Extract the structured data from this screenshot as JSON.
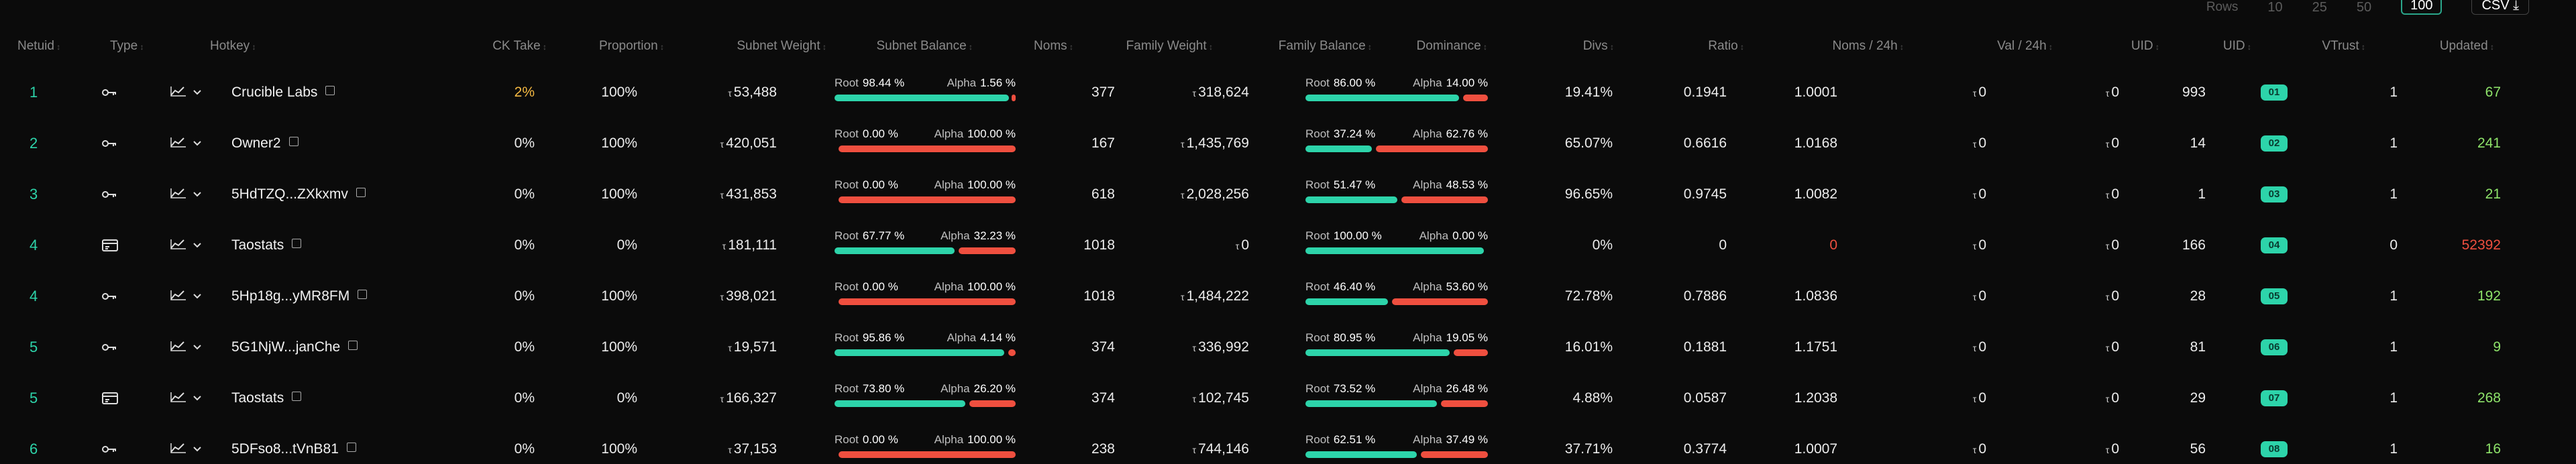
{
  "controls": {
    "rows_label": "Rows",
    "row_options": [
      "10",
      "25",
      "50",
      "100"
    ],
    "selected_rows": "100",
    "csv_label": "CSV"
  },
  "columns": [
    "Netuid",
    "Type",
    "Hotkey",
    "CK Take",
    "Proportion",
    "Subnet Weight",
    "Subnet Balance",
    "Noms",
    "Family Weight",
    "Family Balance",
    "Dominance",
    "Divs",
    "Ratio",
    "Noms / 24h",
    "Val / 24h",
    "UID",
    "UID",
    "VTrust",
    "Updated"
  ],
  "tao_symbol": "τ",
  "balance_labels": {
    "root": "Root",
    "alpha": "Alpha"
  },
  "rows": [
    {
      "netuid": "1",
      "type": "key",
      "hotkey": "Crucible Labs",
      "ck_take": "2%",
      "ck_take_highlight": true,
      "proportion": "100%",
      "subnet_weight": "53,488",
      "subnet_root": "98.44 %",
      "subnet_alpha": "1.56 %",
      "subnet_root_pct": 98.44,
      "noms": "377",
      "family_weight": "318,624",
      "family_root": "86.00 %",
      "family_alpha": "14.00 %",
      "family_root_pct": 86.0,
      "divs": "19.41%",
      "ratio": "0.1941",
      "noms_24h": "1.0001",
      "noms_24h_neg": false,
      "val_24h": "0",
      "uid1": "0",
      "uid2": "993",
      "uid_badge": "01",
      "vtrust": "1",
      "updated": "67",
      "updated_neg": false
    },
    {
      "netuid": "2",
      "type": "key",
      "hotkey": "Owner2",
      "ck_take": "0%",
      "ck_take_highlight": false,
      "proportion": "100%",
      "subnet_weight": "420,051",
      "subnet_root": "0.00 %",
      "subnet_alpha": "100.00 %",
      "subnet_root_pct": 0.0,
      "noms": "167",
      "family_weight": "1,435,769",
      "family_root": "37.24 %",
      "family_alpha": "62.76 %",
      "family_root_pct": 37.24,
      "divs": "65.07%",
      "ratio": "0.6616",
      "noms_24h": "1.0168",
      "noms_24h_neg": false,
      "val_24h": "0",
      "uid1": "0",
      "uid2": "14",
      "uid_badge": "02",
      "vtrust": "1",
      "updated": "241",
      "updated_neg": false
    },
    {
      "netuid": "3",
      "type": "key",
      "hotkey": "5HdTZQ...ZXkxmv",
      "ck_take": "0%",
      "ck_take_highlight": false,
      "proportion": "100%",
      "subnet_weight": "431,853",
      "subnet_root": "0.00 %",
      "subnet_alpha": "100.00 %",
      "subnet_root_pct": 0.0,
      "noms": "618",
      "family_weight": "2,028,256",
      "family_root": "51.47 %",
      "family_alpha": "48.53 %",
      "family_root_pct": 51.47,
      "divs": "96.65%",
      "ratio": "0.9745",
      "noms_24h": "1.0082",
      "noms_24h_neg": false,
      "val_24h": "0",
      "uid1": "0",
      "uid2": "1",
      "uid_badge": "03",
      "vtrust": "1",
      "updated": "21",
      "updated_neg": false
    },
    {
      "netuid": "4",
      "type": "card",
      "hotkey": "Taostats",
      "ck_take": "0%",
      "ck_take_highlight": false,
      "proportion": "0%",
      "subnet_weight": "181,111",
      "subnet_root": "67.77 %",
      "subnet_alpha": "32.23 %",
      "subnet_root_pct": 67.77,
      "noms": "1018",
      "family_weight": "0",
      "family_root": "100.00 %",
      "family_alpha": "0.00 %",
      "family_root_pct": 100.0,
      "divs": "0%",
      "ratio": "0",
      "noms_24h": "0",
      "noms_24h_neg": true,
      "val_24h": "0",
      "uid1": "0",
      "uid2": "166",
      "uid_badge": "04",
      "vtrust": "0",
      "updated": "52392",
      "updated_neg": true
    },
    {
      "netuid": "4",
      "type": "key",
      "hotkey": "5Hp18g...yMR8FM",
      "ck_take": "0%",
      "ck_take_highlight": false,
      "proportion": "100%",
      "subnet_weight": "398,021",
      "subnet_root": "0.00 %",
      "subnet_alpha": "100.00 %",
      "subnet_root_pct": 0.0,
      "noms": "1018",
      "family_weight": "1,484,222",
      "family_root": "46.40 %",
      "family_alpha": "53.60 %",
      "family_root_pct": 46.4,
      "divs": "72.78%",
      "ratio": "0.7886",
      "noms_24h": "1.0836",
      "noms_24h_neg": false,
      "val_24h": "0",
      "uid1": "0",
      "uid2": "28",
      "uid_badge": "05",
      "vtrust": "1",
      "updated": "192",
      "updated_neg": false
    },
    {
      "netuid": "5",
      "type": "key",
      "hotkey": "5G1NjW...janChe",
      "ck_take": "0%",
      "ck_take_highlight": false,
      "proportion": "100%",
      "subnet_weight": "19,571",
      "subnet_root": "95.86 %",
      "subnet_alpha": "4.14 %",
      "subnet_root_pct": 95.86,
      "noms": "374",
      "family_weight": "336,992",
      "family_root": "80.95 %",
      "family_alpha": "19.05 %",
      "family_root_pct": 80.95,
      "divs": "16.01%",
      "ratio": "0.1881",
      "noms_24h": "1.1751",
      "noms_24h_neg": false,
      "val_24h": "0",
      "uid1": "0",
      "uid2": "81",
      "uid_badge": "06",
      "vtrust": "1",
      "updated": "9",
      "updated_neg": false
    },
    {
      "netuid": "5",
      "type": "card",
      "hotkey": "Taostats",
      "ck_take": "0%",
      "ck_take_highlight": false,
      "proportion": "0%",
      "subnet_weight": "166,327",
      "subnet_root": "73.80 %",
      "subnet_alpha": "26.20 %",
      "subnet_root_pct": 73.8,
      "noms": "374",
      "family_weight": "102,745",
      "family_root": "73.52 %",
      "family_alpha": "26.48 %",
      "family_root_pct": 73.52,
      "divs": "4.88%",
      "ratio": "0.0587",
      "noms_24h": "1.2038",
      "noms_24h_neg": false,
      "val_24h": "0",
      "uid1": "0",
      "uid2": "29",
      "uid_badge": "07",
      "vtrust": "1",
      "updated": "268",
      "updated_neg": false
    },
    {
      "netuid": "6",
      "type": "key",
      "hotkey": "5DFso8...tVnB81",
      "ck_take": "0%",
      "ck_take_highlight": false,
      "proportion": "100%",
      "subnet_weight": "37,153",
      "subnet_root": "0.00 %",
      "subnet_alpha": "100.00 %",
      "subnet_root_pct": 0.0,
      "noms": "238",
      "family_weight": "744,146",
      "family_root": "62.51 %",
      "family_alpha": "37.49 %",
      "family_root_pct": 62.51,
      "divs": "37.71%",
      "ratio": "0.3774",
      "noms_24h": "1.0007",
      "noms_24h_neg": false,
      "val_24h": "0",
      "uid1": "0",
      "uid2": "56",
      "uid_badge": "08",
      "vtrust": "1",
      "updated": "16",
      "updated_neg": false
    }
  ]
}
